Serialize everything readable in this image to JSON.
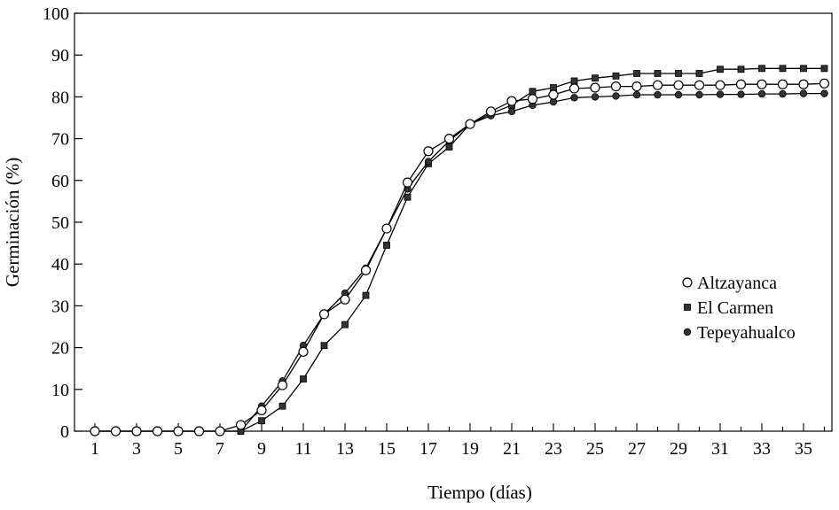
{
  "chart_data": {
    "type": "line",
    "title": "",
    "xlabel": "Tiempo (días)",
    "ylabel": "Germinación (%)",
    "xlim": [
      0.5,
      36.5
    ],
    "ylim": [
      0,
      100
    ],
    "x_ticks": [
      1,
      3,
      5,
      7,
      9,
      11,
      13,
      15,
      17,
      19,
      21,
      23,
      25,
      27,
      29,
      31,
      33,
      35
    ],
    "y_ticks": [
      0,
      10,
      20,
      30,
      40,
      50,
      60,
      70,
      80,
      90,
      100
    ],
    "grid": false,
    "legend_position": "right",
    "x": [
      1,
      2,
      3,
      4,
      5,
      6,
      7,
      8,
      9,
      10,
      11,
      12,
      13,
      14,
      15,
      16,
      17,
      18,
      19,
      20,
      21,
      22,
      23,
      24,
      25,
      26,
      27,
      28,
      29,
      30,
      31,
      32,
      33,
      34,
      35,
      36
    ],
    "series": [
      {
        "name": "Altzayanca",
        "marker": "circle-open",
        "values": [
          0,
          0,
          0,
          0,
          0,
          0,
          0,
          1.5,
          5,
          11,
          19,
          28,
          31.5,
          38.5,
          48.5,
          59.5,
          67,
          70,
          73.5,
          76.5,
          79,
          79.5,
          80.5,
          82,
          82.2,
          82.5,
          82.5,
          82.8,
          82.8,
          82.8,
          82.8,
          83,
          83,
          83,
          83,
          83.2
        ]
      },
      {
        "name": "El Carmen",
        "marker": "square-filled",
        "values": [
          0,
          0,
          0,
          0,
          0,
          0,
          0,
          0,
          2.5,
          6,
          12.5,
          20.5,
          25.5,
          32.5,
          44.5,
          56,
          64,
          68,
          73.5,
          76,
          78,
          81.3,
          82.2,
          83.8,
          84.5,
          85,
          85.6,
          85.6,
          85.6,
          85.6,
          86.6,
          86.6,
          86.8,
          86.8,
          86.8,
          86.8
        ]
      },
      {
        "name": "Tepeyahualco",
        "marker": "circle-filled",
        "values": [
          0,
          0,
          0,
          0,
          0,
          0,
          0,
          0,
          6,
          12,
          20.5,
          28,
          33,
          39,
          48.5,
          58,
          64.5,
          69.5,
          73.5,
          75.5,
          76.5,
          78,
          78.8,
          79.8,
          80,
          80.2,
          80.5,
          80.5,
          80.5,
          80.5,
          80.6,
          80.6,
          80.7,
          80.7,
          80.8,
          80.8
        ]
      }
    ],
    "colors": {
      "line": "#000000",
      "marker_fill_dark": "#333333",
      "background": "#ffffff"
    }
  }
}
